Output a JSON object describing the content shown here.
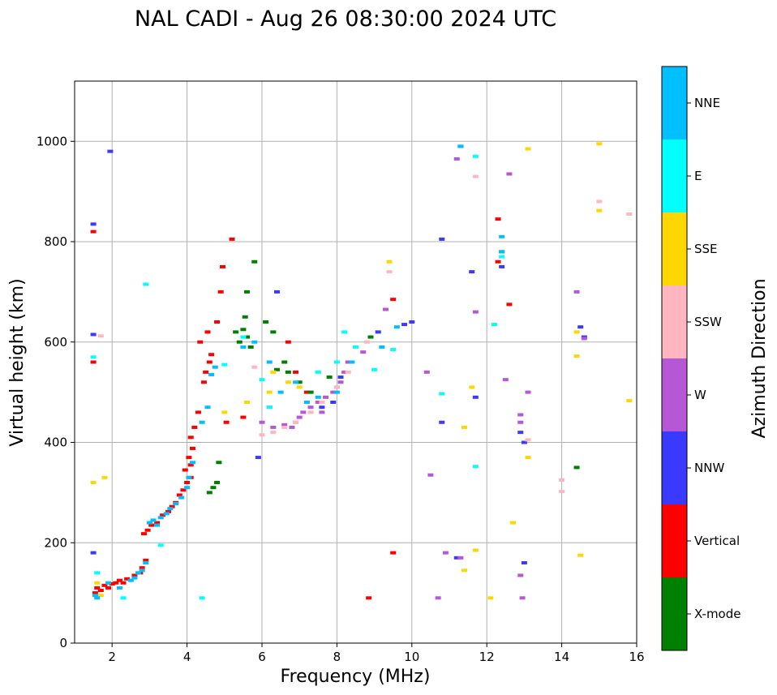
{
  "chart_data": {
    "type": "scatter",
    "title": "NAL CADI - Aug 26 08:30:00 2024 UTC",
    "xlabel": "Frequency (MHz)",
    "ylabel": "Virtual height (km)",
    "xlim": [
      1,
      16
    ],
    "ylim": [
      0,
      1120
    ],
    "xticks": [
      2,
      4,
      6,
      8,
      10,
      12,
      14,
      16
    ],
    "yticks": [
      0,
      200,
      400,
      600,
      800,
      1000
    ],
    "grid": true,
    "colorbar": {
      "title": "Azimuth Direction",
      "categories": [
        {
          "name": "X-mode",
          "color": "#008000"
        },
        {
          "name": "Vertical",
          "color": "#ff0000"
        },
        {
          "name": "NNW",
          "color": "#3a3aff"
        },
        {
          "name": "W",
          "color": "#b657d6"
        },
        {
          "name": "SSW",
          "color": "#ffb6c1"
        },
        {
          "name": "SSE",
          "color": "#ffd700"
        },
        {
          "name": "E",
          "color": "#00ffff"
        },
        {
          "name": "NNE",
          "color": "#00bfff"
        }
      ]
    },
    "series": [
      {
        "name": "Vertical",
        "color": "#ff0000",
        "points": [
          [
            1.55,
            100
          ],
          [
            1.6,
            110
          ],
          [
            1.7,
            105
          ],
          [
            1.8,
            115
          ],
          [
            1.9,
            110
          ],
          [
            2.0,
            118
          ],
          [
            2.1,
            120
          ],
          [
            2.2,
            125
          ],
          [
            2.3,
            120
          ],
          [
            2.4,
            128
          ],
          [
            2.6,
            135
          ],
          [
            2.8,
            150
          ],
          [
            2.75,
            140
          ],
          [
            2.9,
            165
          ],
          [
            2.85,
            218
          ],
          [
            2.95,
            225
          ],
          [
            3.05,
            235
          ],
          [
            3.2,
            240
          ],
          [
            3.35,
            255
          ],
          [
            3.5,
            262
          ],
          [
            3.6,
            272
          ],
          [
            3.7,
            280
          ],
          [
            3.8,
            295
          ],
          [
            3.9,
            305
          ],
          [
            4.0,
            320
          ],
          [
            4.1,
            330
          ],
          [
            3.95,
            345
          ],
          [
            4.1,
            355
          ],
          [
            4.05,
            370
          ],
          [
            4.15,
            388
          ],
          [
            4.1,
            410
          ],
          [
            4.2,
            430
          ],
          [
            4.3,
            460
          ],
          [
            4.45,
            520
          ],
          [
            4.5,
            540
          ],
          [
            4.6,
            560
          ],
          [
            4.65,
            575
          ],
          [
            4.35,
            600
          ],
          [
            4.55,
            620
          ],
          [
            4.8,
            640
          ],
          [
            4.9,
            700
          ],
          [
            4.95,
            750
          ],
          [
            5.2,
            805
          ],
          [
            5.05,
            440
          ],
          [
            5.5,
            450
          ],
          [
            6.7,
            600
          ],
          [
            6.9,
            540
          ],
          [
            7.2,
            500
          ],
          [
            9.5,
            685
          ],
          [
            9.5,
            180
          ],
          [
            8.85,
            90
          ],
          [
            12.3,
            760
          ],
          [
            12.6,
            675
          ],
          [
            1.5,
            820
          ],
          [
            1.5,
            560
          ],
          [
            12.3,
            845
          ]
        ]
      },
      {
        "name": "X-mode",
        "color": "#008000",
        "points": [
          [
            5.3,
            620
          ],
          [
            5.5,
            625
          ],
          [
            5.6,
            610
          ],
          [
            5.4,
            600
          ],
          [
            5.7,
            590
          ],
          [
            5.55,
            650
          ],
          [
            5.8,
            760
          ],
          [
            5.6,
            700
          ],
          [
            6.1,
            640
          ],
          [
            6.3,
            620
          ],
          [
            6.4,
            545
          ],
          [
            6.6,
            560
          ],
          [
            6.7,
            540
          ],
          [
            7.0,
            520
          ],
          [
            7.3,
            500
          ],
          [
            7.8,
            530
          ],
          [
            4.6,
            300
          ],
          [
            4.7,
            310
          ],
          [
            4.85,
            360
          ],
          [
            4.8,
            320
          ],
          [
            8.9,
            610
          ],
          [
            12.4,
            780
          ],
          [
            14.4,
            350
          ]
        ]
      },
      {
        "name": "NNW",
        "color": "#3a3aff",
        "points": [
          [
            1.5,
            180
          ],
          [
            1.5,
            615
          ],
          [
            1.5,
            835
          ],
          [
            1.95,
            980
          ],
          [
            5.9,
            370
          ],
          [
            6.4,
            700
          ],
          [
            7.6,
            470
          ],
          [
            7.9,
            480
          ],
          [
            8.1,
            530
          ],
          [
            9.1,
            620
          ],
          [
            9.8,
            635
          ],
          [
            10.0,
            640
          ],
          [
            10.8,
            805
          ],
          [
            10.8,
            440
          ],
          [
            11.3,
            990
          ],
          [
            11.6,
            740
          ],
          [
            11.7,
            490
          ],
          [
            11.2,
            170
          ],
          [
            12.4,
            750
          ],
          [
            12.9,
            420
          ],
          [
            13.0,
            400
          ],
          [
            13.0,
            160
          ],
          [
            14.5,
            630
          ],
          [
            14.6,
            610
          ]
        ]
      },
      {
        "name": "W",
        "color": "#b657d6",
        "points": [
          [
            6.3,
            430
          ],
          [
            6.6,
            435
          ],
          [
            6.9,
            440
          ],
          [
            7.0,
            450
          ],
          [
            7.1,
            460
          ],
          [
            7.3,
            470
          ],
          [
            7.5,
            480
          ],
          [
            7.7,
            490
          ],
          [
            7.9,
            500
          ],
          [
            8.0,
            510
          ],
          [
            8.1,
            520
          ],
          [
            8.2,
            540
          ],
          [
            8.3,
            560
          ],
          [
            6.8,
            430
          ],
          [
            7.6,
            460
          ],
          [
            6.0,
            440
          ],
          [
            6.2,
            470
          ],
          [
            8.7,
            580
          ],
          [
            9.3,
            665
          ],
          [
            10.4,
            540
          ],
          [
            10.5,
            335
          ],
          [
            10.7,
            90
          ],
          [
            10.9,
            180
          ],
          [
            11.3,
            170
          ],
          [
            12.6,
            935
          ],
          [
            12.5,
            525
          ],
          [
            11.2,
            965
          ],
          [
            11.7,
            660
          ],
          [
            12.9,
            455
          ],
          [
            12.9,
            440
          ],
          [
            13.1,
            500
          ],
          [
            12.9,
            135
          ],
          [
            12.95,
            90
          ],
          [
            14.4,
            700
          ],
          [
            14.6,
            607
          ]
        ]
      },
      {
        "name": "SSW",
        "color": "#ffb6c1",
        "points": [
          [
            6.0,
            415
          ],
          [
            6.3,
            420
          ],
          [
            6.6,
            430
          ],
          [
            6.9,
            440
          ],
          [
            7.3,
            460
          ],
          [
            7.6,
            480
          ],
          [
            8.0,
            510
          ],
          [
            8.3,
            540
          ],
          [
            9.4,
            740
          ],
          [
            11.7,
            930
          ],
          [
            13.1,
            405
          ],
          [
            14.0,
            325
          ],
          [
            14.0,
            302
          ],
          [
            15.0,
            880
          ],
          [
            15.8,
            855
          ],
          [
            1.7,
            612
          ],
          [
            5.8,
            550
          ],
          [
            8.8,
            600
          ]
        ]
      },
      {
        "name": "SSE",
        "color": "#ffd700",
        "points": [
          [
            1.5,
            320
          ],
          [
            1.6,
            120
          ],
          [
            1.7,
            95
          ],
          [
            5.0,
            460
          ],
          [
            5.6,
            480
          ],
          [
            6.2,
            500
          ],
          [
            6.3,
            540
          ],
          [
            6.7,
            520
          ],
          [
            7.0,
            510
          ],
          [
            9.4,
            760
          ],
          [
            11.4,
            430
          ],
          [
            11.6,
            510
          ],
          [
            11.7,
            185
          ],
          [
            11.4,
            145
          ],
          [
            12.1,
            90
          ],
          [
            12.7,
            240
          ],
          [
            13.1,
            985
          ],
          [
            13.1,
            370
          ],
          [
            14.4,
            620
          ],
          [
            14.4,
            572
          ],
          [
            14.5,
            175
          ],
          [
            15.0,
            995
          ],
          [
            15.0,
            862
          ],
          [
            15.8,
            483
          ],
          [
            1.8,
            330
          ]
        ]
      },
      {
        "name": "E",
        "color": "#00ffff",
        "points": [
          [
            1.5,
            570
          ],
          [
            1.6,
            140
          ],
          [
            2.3,
            90
          ],
          [
            2.9,
            715
          ],
          [
            3.3,
            195
          ],
          [
            4.4,
            90
          ],
          [
            5.0,
            555
          ],
          [
            5.5,
            610
          ],
          [
            6.0,
            525
          ],
          [
            6.2,
            470
          ],
          [
            7.5,
            540
          ],
          [
            8.0,
            560
          ],
          [
            8.2,
            620
          ],
          [
            8.5,
            590
          ],
          [
            9.0,
            545
          ],
          [
            9.5,
            585
          ],
          [
            10.8,
            497
          ],
          [
            11.7,
            970
          ],
          [
            11.7,
            352
          ],
          [
            12.2,
            635
          ],
          [
            12.4,
            770
          ]
        ]
      },
      {
        "name": "NNE",
        "color": "#00bfff",
        "points": [
          [
            1.55,
            95
          ],
          [
            1.6,
            90
          ],
          [
            1.9,
            120
          ],
          [
            2.2,
            110
          ],
          [
            2.5,
            125
          ],
          [
            2.6,
            130
          ],
          [
            2.7,
            140
          ],
          [
            2.8,
            145
          ],
          [
            2.9,
            160
          ],
          [
            3.0,
            240
          ],
          [
            3.1,
            245
          ],
          [
            3.2,
            235
          ],
          [
            3.3,
            250
          ],
          [
            3.45,
            258
          ],
          [
            3.55,
            268
          ],
          [
            3.7,
            278
          ],
          [
            3.85,
            290
          ],
          [
            4.0,
            310
          ],
          [
            4.05,
            330
          ],
          [
            4.15,
            360
          ],
          [
            4.4,
            440
          ],
          [
            4.55,
            470
          ],
          [
            4.65,
            535
          ],
          [
            4.75,
            550
          ],
          [
            5.5,
            590
          ],
          [
            5.8,
            600
          ],
          [
            6.2,
            560
          ],
          [
            6.5,
            500
          ],
          [
            6.9,
            520
          ],
          [
            7.2,
            480
          ],
          [
            7.5,
            490
          ],
          [
            8.0,
            500
          ],
          [
            8.4,
            560
          ],
          [
            9.2,
            590
          ],
          [
            9.6,
            630
          ],
          [
            11.3,
            990
          ],
          [
            12.4,
            780
          ],
          [
            12.4,
            810
          ]
        ]
      }
    ]
  }
}
